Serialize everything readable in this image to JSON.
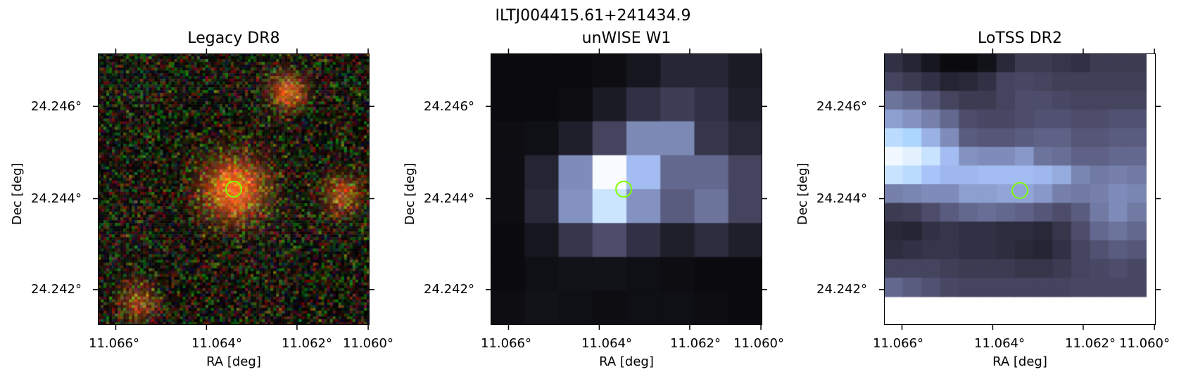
{
  "suptitle": "ILTJ004415.61+241434.9",
  "colors": {
    "marker": "#7fff00",
    "frame": "#000000"
  },
  "panels": [
    {
      "title": "Legacy DR8",
      "xlabel": "RA [deg]",
      "ylabel": "Dec [deg]",
      "xticks": [
        "11.066°",
        "11.064°",
        "11.062°",
        "11.060°"
      ],
      "yticks": [
        "24.246°",
        "24.244°",
        "24.242°"
      ],
      "image_kind": "rgb-noise-with-sources"
    },
    {
      "title": "unWISE W1",
      "xlabel": "RA [deg]",
      "ylabel": "Dec [deg]",
      "xticks": [
        "11.066°",
        "11.064°",
        "11.062°",
        "11.060°"
      ],
      "yticks": [
        "24.246°",
        "24.244°",
        "24.242°"
      ],
      "image_kind": "bone-coarse"
    },
    {
      "title": "LoTSS DR2",
      "xlabel": "RA [deg]",
      "ylabel": "Dec [deg]",
      "xticks": [
        "11.066°",
        "11.064°",
        "11.062°",
        "11.060°"
      ],
      "yticks": [
        "24.246°",
        "24.244°",
        "24.242°"
      ],
      "image_kind": "bone-fine"
    }
  ]
}
